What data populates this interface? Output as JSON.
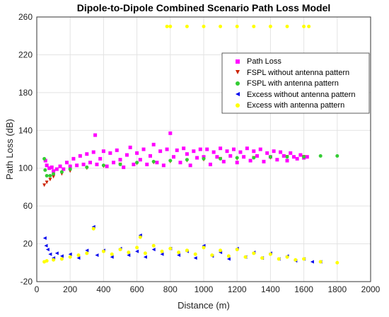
{
  "chart_data": {
    "type": "scatter",
    "title": "Dipole-to-Dipole Combined Scenario Path Loss Model",
    "xlabel": "Distance (m)",
    "ylabel": "Path Loss (dB)",
    "xlim": [
      0,
      2000
    ],
    "ylim": [
      -20,
      260
    ],
    "xticks": [
      0,
      200,
      400,
      600,
      800,
      1000,
      1200,
      1400,
      1600,
      1800,
      2000
    ],
    "yticks": [
      -20,
      20,
      60,
      100,
      140,
      180,
      220,
      260
    ],
    "grid": true,
    "legend_position": "top-right",
    "series": [
      {
        "name": "Path Loss",
        "marker": "square",
        "color": "#ff00ff",
        "points": [
          [
            52,
            108
          ],
          [
            60,
            103
          ],
          [
            75,
            100
          ],
          [
            90,
            101
          ],
          [
            100,
            97
          ],
          [
            120,
            99
          ],
          [
            140,
            102
          ],
          [
            160,
            99
          ],
          [
            180,
            106
          ],
          [
            200,
            102
          ],
          [
            220,
            110
          ],
          [
            240,
            103
          ],
          [
            260,
            113
          ],
          [
            280,
            104
          ],
          [
            300,
            115
          ],
          [
            320,
            106
          ],
          [
            340,
            117
          ],
          [
            350,
            135
          ],
          [
            360,
            104
          ],
          [
            380,
            110
          ],
          [
            400,
            118
          ],
          [
            420,
            102
          ],
          [
            440,
            116
          ],
          [
            460,
            106
          ],
          [
            480,
            119
          ],
          [
            500,
            109
          ],
          [
            520,
            101
          ],
          [
            540,
            114
          ],
          [
            560,
            122
          ],
          [
            580,
            104
          ],
          [
            600,
            116
          ],
          [
            620,
            109
          ],
          [
            640,
            120
          ],
          [
            660,
            104
          ],
          [
            680,
            113
          ],
          [
            700,
            125
          ],
          [
            720,
            106
          ],
          [
            740,
            118
          ],
          [
            760,
            103
          ],
          [
            780,
            120
          ],
          [
            800,
            137
          ],
          [
            820,
            112
          ],
          [
            840,
            119
          ],
          [
            860,
            106
          ],
          [
            880,
            121
          ],
          [
            900,
            115
          ],
          [
            920,
            103
          ],
          [
            940,
            118
          ],
          [
            960,
            111
          ],
          [
            980,
            120
          ],
          [
            1000,
            112
          ],
          [
            1020,
            120
          ],
          [
            1040,
            104
          ],
          [
            1060,
            117
          ],
          [
            1080,
            112
          ],
          [
            1100,
            121
          ],
          [
            1120,
            107
          ],
          [
            1140,
            118
          ],
          [
            1160,
            113
          ],
          [
            1180,
            120
          ],
          [
            1200,
            106
          ],
          [
            1220,
            117
          ],
          [
            1240,
            112
          ],
          [
            1260,
            121
          ],
          [
            1280,
            108
          ],
          [
            1300,
            118
          ],
          [
            1320,
            113
          ],
          [
            1340,
            120
          ],
          [
            1360,
            107
          ],
          [
            1380,
            116
          ],
          [
            1400,
            112
          ],
          [
            1420,
            118
          ],
          [
            1440,
            109
          ],
          [
            1460,
            117
          ],
          [
            1480,
            113
          ],
          [
            1500,
            108
          ],
          [
            1520,
            116
          ],
          [
            1540,
            112
          ],
          [
            1560,
            110
          ],
          [
            1580,
            114
          ],
          [
            1600,
            111
          ],
          [
            1620,
            112
          ]
        ]
      },
      {
        "name": "FSPL without antenna pattern",
        "marker": "triangle-down",
        "color": "#cc2200",
        "points": [
          [
            45,
            82
          ],
          [
            60,
            85
          ],
          [
            80,
            88
          ],
          [
            100,
            91
          ],
          [
            150,
            94
          ],
          [
            200,
            97
          ],
          [
            300,
            100
          ],
          [
            400,
            102
          ],
          [
            500,
            104
          ],
          [
            600,
            105
          ],
          [
            700,
            106
          ],
          [
            800,
            107
          ],
          [
            900,
            108
          ],
          [
            1000,
            109
          ],
          [
            1100,
            110
          ],
          [
            1200,
            110
          ],
          [
            1300,
            111
          ],
          [
            1400,
            111
          ],
          [
            1500,
            112
          ],
          [
            1600,
            112
          ]
        ]
      },
      {
        "name": "FSPL with antenna pattern",
        "marker": "circle",
        "color": "#33cc33",
        "points": [
          [
            45,
            110
          ],
          [
            50,
            98
          ],
          [
            60,
            92
          ],
          [
            80,
            92
          ],
          [
            100,
            94
          ],
          [
            150,
            96
          ],
          [
            200,
            99
          ],
          [
            300,
            101
          ],
          [
            400,
            103
          ],
          [
            500,
            104
          ],
          [
            600,
            106
          ],
          [
            700,
            107
          ],
          [
            800,
            108
          ],
          [
            900,
            109
          ],
          [
            1000,
            110
          ],
          [
            1100,
            110
          ],
          [
            1200,
            111
          ],
          [
            1300,
            111
          ],
          [
            1400,
            112
          ],
          [
            1500,
            112
          ],
          [
            1600,
            112
          ],
          [
            1700,
            113
          ],
          [
            1800,
            113
          ]
        ]
      },
      {
        "name": "Excess without antenna pattern",
        "marker": "triangle-left",
        "color": "#0000ee",
        "points": [
          [
            48,
            26
          ],
          [
            55,
            18
          ],
          [
            65,
            14
          ],
          [
            80,
            9
          ],
          [
            100,
            5
          ],
          [
            120,
            10
          ],
          [
            150,
            7
          ],
          [
            200,
            9
          ],
          [
            250,
            5
          ],
          [
            300,
            13
          ],
          [
            340,
            38
          ],
          [
            360,
            8
          ],
          [
            400,
            13
          ],
          [
            450,
            6
          ],
          [
            500,
            15
          ],
          [
            550,
            8
          ],
          [
            600,
            12
          ],
          [
            620,
            29
          ],
          [
            650,
            6
          ],
          [
            700,
            14
          ],
          [
            750,
            9
          ],
          [
            800,
            15
          ],
          [
            850,
            8
          ],
          [
            900,
            12
          ],
          [
            950,
            5
          ],
          [
            1000,
            18
          ],
          [
            1050,
            7
          ],
          [
            1100,
            11
          ],
          [
            1150,
            4
          ],
          [
            1200,
            15
          ],
          [
            1250,
            6
          ],
          [
            1300,
            11
          ],
          [
            1350,
            5
          ],
          [
            1400,
            10
          ],
          [
            1450,
            4
          ],
          [
            1500,
            7
          ],
          [
            1550,
            2
          ],
          [
            1600,
            4
          ],
          [
            1650,
            1
          ],
          [
            1700,
            1
          ]
        ]
      },
      {
        "name": "Excess with antenna pattern",
        "marker": "circle",
        "color": "#ffff00",
        "points": [
          [
            45,
            1
          ],
          [
            60,
            2
          ],
          [
            100,
            3
          ],
          [
            150,
            4
          ],
          [
            200,
            6
          ],
          [
            250,
            8
          ],
          [
            300,
            10
          ],
          [
            340,
            36
          ],
          [
            400,
            12
          ],
          [
            450,
            9
          ],
          [
            500,
            14
          ],
          [
            550,
            11
          ],
          [
            600,
            16
          ],
          [
            620,
            27
          ],
          [
            650,
            10
          ],
          [
            700,
            18
          ],
          [
            750,
            12
          ],
          [
            800,
            15
          ],
          [
            850,
            11
          ],
          [
            900,
            13
          ],
          [
            950,
            9
          ],
          [
            1000,
            16
          ],
          [
            1050,
            8
          ],
          [
            1100,
            13
          ],
          [
            1150,
            7
          ],
          [
            1200,
            14
          ],
          [
            1250,
            6
          ],
          [
            1300,
            10
          ],
          [
            1350,
            5
          ],
          [
            1400,
            9
          ],
          [
            1450,
            4
          ],
          [
            1500,
            6
          ],
          [
            1550,
            3
          ],
          [
            1600,
            4
          ],
          [
            1700,
            1
          ],
          [
            1800,
            0
          ],
          [
            780,
            250
          ],
          [
            800,
            250
          ],
          [
            900,
            250
          ],
          [
            1000,
            250
          ],
          [
            1100,
            250
          ],
          [
            1200,
            250
          ],
          [
            1300,
            250
          ],
          [
            1400,
            250
          ],
          [
            1500,
            250
          ],
          [
            1600,
            250
          ],
          [
            1630,
            250
          ]
        ]
      }
    ]
  }
}
